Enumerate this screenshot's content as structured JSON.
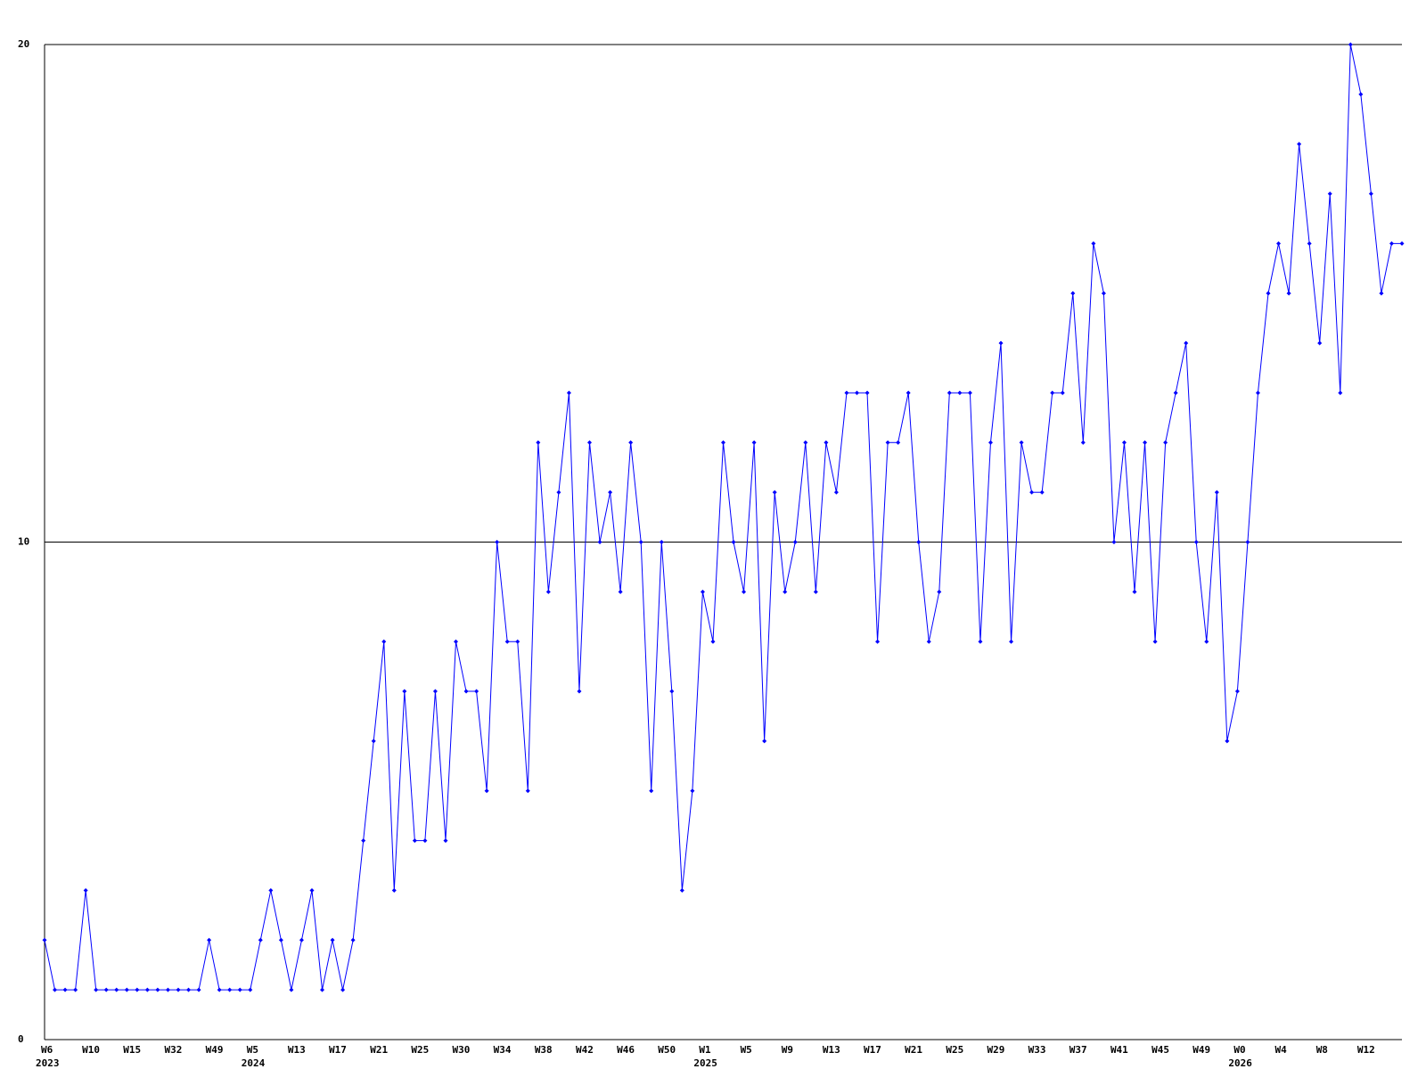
{
  "chart_data": {
    "type": "line",
    "categories": [
      "W6",
      null,
      null,
      null,
      "W10",
      null,
      null,
      null,
      "W15",
      null,
      null,
      null,
      "W32",
      null,
      null,
      null,
      "W49",
      null,
      null,
      null,
      "W5",
      null,
      null,
      null,
      "W13",
      null,
      null,
      null,
      "W17",
      null,
      null,
      null,
      "W21",
      null,
      null,
      null,
      "W25",
      null,
      null,
      null,
      "W30",
      null,
      null,
      null,
      "W34",
      null,
      null,
      null,
      "W38",
      null,
      null,
      null,
      "W42",
      null,
      null,
      null,
      "W46",
      null,
      null,
      null,
      "W50",
      null,
      null,
      null,
      "W1",
      null,
      null,
      null,
      "W5",
      null,
      null,
      null,
      "W9",
      null,
      null,
      null,
      "W13",
      null,
      null,
      null,
      "W17",
      null,
      null,
      null,
      "W21",
      null,
      null,
      null,
      "W25",
      null,
      null,
      null,
      "W29",
      null,
      null,
      null,
      "W33",
      null,
      null,
      null,
      "W37",
      null,
      null,
      null,
      "W41",
      null,
      null,
      null,
      "W45",
      null,
      null,
      null,
      "W49",
      null,
      null,
      null,
      "W0",
      null,
      null,
      null,
      "W4",
      null,
      null,
      null,
      "W8",
      null,
      null,
      null,
      "W12",
      null,
      null,
      null,
      null
    ],
    "year_categories": [
      "2023",
      null,
      null,
      null,
      null,
      null,
      null,
      null,
      null,
      null,
      null,
      null,
      null,
      null,
      null,
      null,
      null,
      null,
      null,
      null,
      "2024",
      null,
      null,
      null,
      null,
      null,
      null,
      null,
      null,
      null,
      null,
      null,
      null,
      null,
      null,
      null,
      null,
      null,
      null,
      null,
      null,
      null,
      null,
      null,
      null,
      null,
      null,
      null,
      null,
      null,
      null,
      null,
      null,
      null,
      null,
      null,
      null,
      null,
      null,
      null,
      null,
      null,
      null,
      null,
      "2025",
      null,
      null,
      null,
      null,
      null,
      null,
      null,
      null,
      null,
      null,
      null,
      null,
      null,
      null,
      null,
      null,
      null,
      null,
      null,
      null,
      null,
      null,
      null,
      null,
      null,
      null,
      null,
      null,
      null,
      null,
      null,
      null,
      null,
      null,
      null,
      null,
      null,
      null,
      null,
      null,
      null,
      null,
      null,
      null,
      null,
      null,
      null,
      null,
      null,
      null,
      null,
      "2026",
      null,
      null,
      null,
      null,
      null,
      null,
      null,
      null,
      null,
      null,
      null,
      null,
      null,
      null,
      null,
      null
    ],
    "values": [
      2,
      1,
      1,
      1,
      3,
      1,
      1,
      1,
      1,
      1,
      1,
      1,
      1,
      1,
      1,
      1,
      2,
      1,
      1,
      1,
      1,
      2,
      3,
      2,
      1,
      2,
      3,
      1,
      2,
      1,
      2,
      4,
      6,
      8,
      3,
      7,
      4,
      4,
      7,
      4,
      8,
      7,
      7,
      5,
      10,
      8,
      8,
      5,
      12,
      9,
      11,
      13,
      7,
      12,
      10,
      11,
      9,
      12,
      10,
      5,
      10,
      7,
      3,
      5,
      9,
      8,
      12,
      10,
      9,
      12,
      6,
      11,
      9,
      10,
      12,
      9,
      12,
      11,
      13,
      13,
      13,
      8,
      12,
      12,
      13,
      10,
      8,
      9,
      13,
      13,
      13,
      8,
      12,
      14,
      8,
      12,
      11,
      11,
      13,
      13,
      15,
      12,
      16,
      15,
      10,
      12,
      9,
      12,
      8,
      12,
      13,
      14,
      10,
      8,
      11,
      6,
      7,
      10,
      13,
      15,
      16,
      15,
      18,
      16,
      14,
      17,
      13,
      20,
      19,
      17,
      15,
      16,
      16
    ],
    "color": "#0000ff",
    "ylim": [
      0,
      20
    ],
    "yticks": [
      0,
      10,
      20
    ],
    "grid": true
  }
}
